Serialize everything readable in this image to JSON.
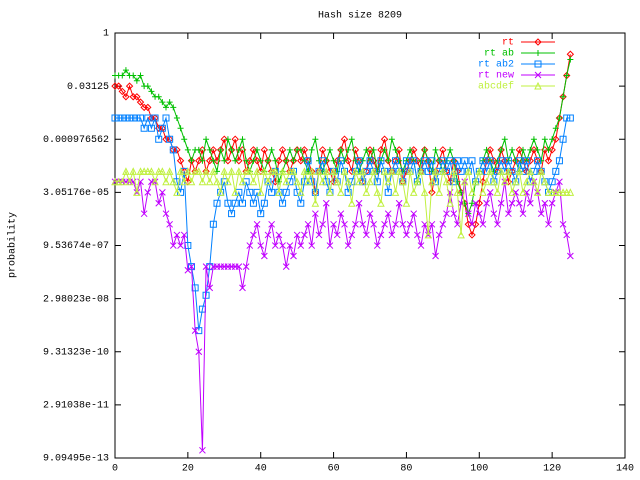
{
  "chart_data": {
    "type": "line",
    "title": "Hash size 8209",
    "ylabel": "probability",
    "x": [
      0,
      1,
      2,
      3,
      4,
      5,
      6,
      7,
      8,
      9,
      10,
      11,
      12,
      13,
      14,
      15,
      16,
      17,
      18,
      19,
      20,
      21,
      22,
      23,
      24,
      25,
      26,
      27,
      28,
      29,
      30,
      31,
      32,
      33,
      34,
      35,
      36,
      37,
      38,
      39,
      40,
      41,
      42,
      43,
      44,
      45,
      46,
      47,
      48,
      49,
      50,
      51,
      52,
      53,
      54,
      55,
      56,
      57,
      58,
      59,
      60,
      61,
      62,
      63,
      64,
      65,
      66,
      67,
      68,
      69,
      70,
      71,
      72,
      73,
      74,
      75,
      76,
      77,
      78,
      79,
      80,
      81,
      82,
      83,
      84,
      85,
      86,
      87,
      88,
      89,
      90,
      91,
      92,
      93,
      94,
      95,
      96,
      97,
      98,
      99,
      100,
      101,
      102,
      103,
      104,
      105,
      106,
      107,
      108,
      109,
      110,
      111,
      112,
      113,
      114,
      115,
      116,
      117,
      118,
      119,
      120,
      121,
      122,
      123,
      124,
      125
    ],
    "xlim": [
      0,
      140
    ],
    "xticks": [
      0,
      20,
      40,
      60,
      80,
      100,
      120,
      140
    ],
    "ylim": [
      9.09495e-13,
      1
    ],
    "ylog": true,
    "yticks": [
      {
        "value": 9.09495e-13,
        "label": "9.09495e-13"
      },
      {
        "value": 2.91038e-11,
        "label": "2.91038e-11"
      },
      {
        "value": 9.31323e-10,
        "label": "9.31323e-10"
      },
      {
        "value": 2.98023e-08,
        "label": "2.98023e-08"
      },
      {
        "value": 9.53674e-07,
        "label": "9.53674e-07"
      },
      {
        "value": 3.05176e-05,
        "label": "3.05176e-05"
      },
      0.000976562,
      0.03125,
      1
    ],
    "legend": "top-right",
    "series": [
      {
        "name": "rt",
        "color": "#ff0000",
        "marker": "diamond",
        "values": [
          0.0313,
          0.0313,
          0.0221,
          0.0156,
          0.0313,
          0.0156,
          0.0156,
          0.011,
          0.0078,
          0.0078,
          0.0039,
          0.0039,
          0.002,
          0.002,
          0.00098,
          0.00098,
          0.00049,
          0.00049,
          0.00024,
          0.00012,
          6.1e-05,
          0.00024,
          0.00012,
          0.00024,
          0.00049,
          0.00012,
          0.00024,
          0.00049,
          0.00024,
          0.00049,
          0.00098,
          0.00024,
          0.00049,
          0.00098,
          0.00024,
          0.00049,
          0.00012,
          0.00024,
          0.00049,
          0.00024,
          0.00012,
          0.00049,
          0.00024,
          0.00012,
          6.1e-05,
          0.00024,
          0.00049,
          0.00024,
          0.00012,
          0.00024,
          0.00049,
          0.00024,
          0.00049,
          0.00024,
          0.00012,
          3.05e-05,
          0.00012,
          0.00049,
          0.00024,
          0.00012,
          6.1e-05,
          0.00024,
          0.00049,
          0.00098,
          0.00024,
          0.00012,
          0.00049,
          0.00024,
          6.1e-05,
          0.00012,
          0.00049,
          0.00024,
          0.00012,
          0.00049,
          0.00098,
          0.00024,
          0.00012,
          0.00024,
          0.00049,
          6.1e-05,
          0.00012,
          0.00024,
          0.00049,
          0.00024,
          0.00012,
          0.00049,
          0.00024,
          3.05e-05,
          0.00012,
          0.00024,
          0.00049,
          0.00012,
          6.1e-05,
          0.00024,
          0.00012,
          3.05e-05,
          1.5e-05,
          3.8e-06,
          1.9e-06,
          3.8e-06,
          1.5e-05,
          6.1e-05,
          0.00024,
          0.00049,
          0.00024,
          0.00012,
          0.00049,
          0.00024,
          6.1e-05,
          0.00012,
          0.00024,
          0.00049,
          0.00024,
          0.00012,
          0.00024,
          0.00049,
          0.00024,
          0.00012,
          0.00049,
          0.00024,
          0.00049,
          0.00098,
          0.0039,
          0.0156,
          0.0625,
          0.25
        ]
      },
      {
        "name": "rt ab",
        "color": "#00c000",
        "marker": "plus",
        "values": [
          0.0625,
          0.0625,
          0.0625,
          0.0884,
          0.0625,
          0.0625,
          0.0442,
          0.0625,
          0.0313,
          0.0313,
          0.0221,
          0.0156,
          0.0156,
          0.011,
          0.0078,
          0.011,
          0.0078,
          0.0039,
          0.002,
          0.00098,
          0.00049,
          0.00024,
          0.00049,
          0.00049,
          0.00024,
          0.00098,
          0.00049,
          0.00024,
          0.00012,
          0.00049,
          0.00024,
          0.00098,
          0.00049,
          0.00024,
          0.00049,
          0.00098,
          0.00024,
          0.00012,
          0.00024,
          0.00049,
          0.00024,
          0.00012,
          0.00024,
          0.00049,
          0.00024,
          6.1e-05,
          0.00012,
          0.00024,
          0.00049,
          0.00024,
          0.00049,
          0.00049,
          0.00024,
          0.00012,
          0.00049,
          0.00098,
          0.00024,
          0.00012,
          0.00024,
          0.00049,
          0.00024,
          0.00012,
          0.00049,
          0.00024,
          0.00049,
          0.00098,
          0.00024,
          0.00012,
          0.00024,
          0.00049,
          0.00024,
          0.00049,
          0.00012,
          0.00024,
          0.00049,
          0.00024,
          0.00098,
          0.00049,
          0.00024,
          0.00012,
          0.00024,
          0.00049,
          0.00024,
          6.1e-05,
          0.00024,
          0.00049,
          0.00024,
          0.00012,
          0.00049,
          0.00024,
          0.00012,
          0.00024,
          0.00049,
          0.00024,
          6.1e-05,
          3.05e-05,
          1.5e-05,
          7.6e-06,
          1.5e-05,
          6.1e-05,
          0.00012,
          0.00024,
          0.00049,
          0.00024,
          0.00012,
          0.00024,
          0.00049,
          0.00098,
          0.00024,
          0.00049,
          0.00024,
          0.00012,
          0.00049,
          0.00024,
          0.00049,
          0.00098,
          0.00049,
          0.00024,
          0.00098,
          0.00049,
          0.00098,
          0.002,
          0.0039,
          0.0156,
          0.0625,
          0.177
        ]
      },
      {
        "name": "rt ab2",
        "color": "#0080ff",
        "marker": "square",
        "values": [
          0.0039,
          0.0039,
          0.0039,
          0.0039,
          0.0039,
          0.0039,
          0.0039,
          0.0039,
          0.002,
          0.0039,
          0.002,
          0.0039,
          0.00098,
          0.002,
          0.0039,
          0.00098,
          0.00049,
          6.1e-05,
          3.05e-05,
          0.00012,
          9.5e-07,
          2.4e-07,
          6e-08,
          3.7e-09,
          1.5e-08,
          3.7e-08,
          2.4e-07,
          3.8e-06,
          1.5e-05,
          3.05e-05,
          6.1e-05,
          1.5e-05,
          7.6e-06,
          1.5e-05,
          3.05e-05,
          1.5e-05,
          6.1e-05,
          3.05e-05,
          1.5e-05,
          3.05e-05,
          7.6e-06,
          1.5e-05,
          6.1e-05,
          3.05e-05,
          0.00012,
          3.05e-05,
          1.5e-05,
          3.05e-05,
          6.1e-05,
          0.00012,
          3.05e-05,
          1.5e-05,
          6.1e-05,
          0.00024,
          6.1e-05,
          3.05e-05,
          0.00012,
          0.00024,
          6.1e-05,
          3.05e-05,
          0.00012,
          6.1e-05,
          0.00024,
          0.00012,
          3.05e-05,
          6.1e-05,
          0.00012,
          0.00024,
          6.1e-05,
          0.00012,
          0.00024,
          0.00012,
          6.1e-05,
          0.00024,
          0.00012,
          3.05e-05,
          0.00012,
          0.00024,
          0.00012,
          6.1e-05,
          0.00024,
          0.00012,
          0.00024,
          6.1e-05,
          0.00012,
          0.00024,
          0.00012,
          0.00024,
          6.1e-05,
          0.00012,
          0.00024,
          0.00012,
          0.00024,
          6.1e-05,
          0.00024,
          0.00012,
          0.00024,
          0.00012,
          0.00024,
          6.1e-05,
          0.00012,
          0.00024,
          0.00012,
          0.00024,
          6.1e-05,
          0.00012,
          0.00024,
          0.00012,
          0.00024,
          0.00012,
          6.1e-05,
          0.00024,
          0.00012,
          0.00024,
          6.1e-05,
          0.00012,
          0.00024,
          0.00012,
          6.1e-05,
          3.05e-05,
          6.1e-05,
          0.00012,
          0.00024,
          0.00098,
          0.0039,
          0.0039
        ]
      },
      {
        "name": "rt new",
        "color": "#c000ff",
        "marker": "cross",
        "values": [
          6.1e-05,
          6.1e-05,
          6.1e-05,
          6.1e-05,
          6.1e-05,
          6.1e-05,
          3.05e-05,
          6.1e-05,
          7.6e-06,
          3.05e-05,
          6.1e-05,
          6.1e-05,
          1.5e-05,
          3.05e-05,
          7.6e-06,
          3.8e-06,
          9.5e-07,
          1.9e-06,
          9.5e-07,
          1.9e-06,
          1.9e-07,
          2.4e-07,
          3.7e-09,
          9.3e-10,
          1.5e-12,
          2.4e-07,
          6e-08,
          2.4e-07,
          2.4e-07,
          2.4e-07,
          2.4e-07,
          2.4e-07,
          2.4e-07,
          2.4e-07,
          2.4e-07,
          6e-08,
          2.4e-07,
          9.5e-07,
          1.9e-06,
          3.8e-06,
          9.5e-07,
          4.8e-07,
          1.9e-06,
          3.8e-06,
          9.5e-07,
          1.9e-06,
          9.5e-07,
          2.4e-07,
          9.5e-07,
          4.8e-07,
          1.9e-06,
          9.5e-07,
          1.9e-06,
          3.8e-06,
          9.5e-07,
          7.6e-06,
          1.9e-06,
          3.8e-06,
          1.5e-05,
          9.5e-07,
          3.8e-06,
          1.9e-06,
          7.6e-06,
          3.8e-06,
          9.5e-07,
          1.9e-06,
          3.8e-06,
          1.5e-05,
          3.8e-06,
          1.9e-06,
          7.6e-06,
          3.8e-06,
          9.5e-07,
          1.9e-06,
          3.8e-06,
          7.6e-06,
          1.9e-06,
          3.8e-06,
          1.5e-05,
          3.8e-06,
          1.9e-06,
          3.8e-06,
          7.6e-06,
          1.9e-06,
          9.5e-07,
          3.8e-06,
          1.9e-06,
          3.8e-06,
          4.8e-07,
          1.9e-06,
          3.8e-06,
          7.6e-06,
          3.05e-05,
          7.6e-06,
          3.8e-06,
          1.5e-05,
          6.1e-05,
          7.6e-06,
          3.8e-06,
          1.5e-05,
          7.6e-06,
          3.8e-06,
          1.5e-05,
          3.05e-05,
          7.6e-06,
          3.8e-06,
          1.5e-05,
          6.1e-05,
          7.6e-06,
          1.5e-05,
          3.05e-05,
          1.5e-05,
          7.6e-06,
          3.05e-05,
          1.5e-05,
          6.1e-05,
          3.05e-05,
          7.6e-06,
          1.5e-05,
          3.8e-06,
          1.5e-05,
          3.05e-05,
          6.1e-05,
          3.8e-06,
          1.9e-06,
          4.8e-07
        ]
      },
      {
        "name": "abcdef",
        "color": "#c0f040",
        "marker": "triangle",
        "values": [
          6.1e-05,
          6.1e-05,
          6.1e-05,
          0.00012,
          6.1e-05,
          0.00012,
          3.05e-05,
          0.00012,
          0.00012,
          0.00012,
          0.00012,
          6.1e-05,
          0.00012,
          0.00012,
          6.1e-05,
          0.00012,
          6.1e-05,
          3.05e-05,
          0.00012,
          6.1e-05,
          0.00012,
          6.1e-05,
          0.00012,
          0.00012,
          6.1e-05,
          0.00012,
          6.1e-05,
          0.00012,
          6.1e-05,
          3.05e-05,
          0.00012,
          6.1e-05,
          0.00012,
          3.05e-05,
          0.00012,
          6.1e-05,
          0.00012,
          0.00012,
          6.1e-05,
          0.00012,
          3.05e-05,
          0.00012,
          6.1e-05,
          0.00012,
          0.00012,
          3.05e-05,
          0.00012,
          6.1e-05,
          0.00012,
          0.00012,
          6.1e-05,
          3.05e-05,
          0.00012,
          6.1e-05,
          0.00012,
          1.5e-05,
          0.00012,
          6.1e-05,
          0.00012,
          3.05e-05,
          0.00012,
          6.1e-05,
          3.05e-05,
          0.00012,
          6.1e-05,
          1.5e-05,
          0.00012,
          6.1e-05,
          0.00012,
          3.05e-05,
          6.1e-05,
          0.00012,
          3.05e-05,
          1.5e-05,
          0.00012,
          6.1e-05,
          0.00012,
          3.05e-05,
          0.00012,
          6.1e-05,
          1.5e-05,
          0.00012,
          3.05e-05,
          6.1e-05,
          0.00012,
          3.05e-05,
          1.9e-06,
          6.1e-05,
          0.00012,
          3.05e-05,
          0.00012,
          6.1e-05,
          1.5e-05,
          0.00012,
          3.05e-05,
          1.9e-06,
          6.1e-05,
          0.00012,
          3.05e-05,
          6.1e-05,
          0.00012,
          3.05e-05,
          6.1e-05,
          0.00012,
          6.1e-05,
          3.05e-05,
          0.00012,
          6.1e-05,
          0.00012,
          3.05e-05,
          6.1e-05,
          0.00012,
          3.05e-05,
          6.1e-05,
          0.00012,
          6.1e-05,
          3.05e-05,
          0.00012,
          6.1e-05,
          3.05e-05,
          3.05e-05,
          3.05e-05,
          3.05e-05,
          3.05e-05,
          3.05e-05,
          3.05e-05
        ]
      }
    ]
  }
}
